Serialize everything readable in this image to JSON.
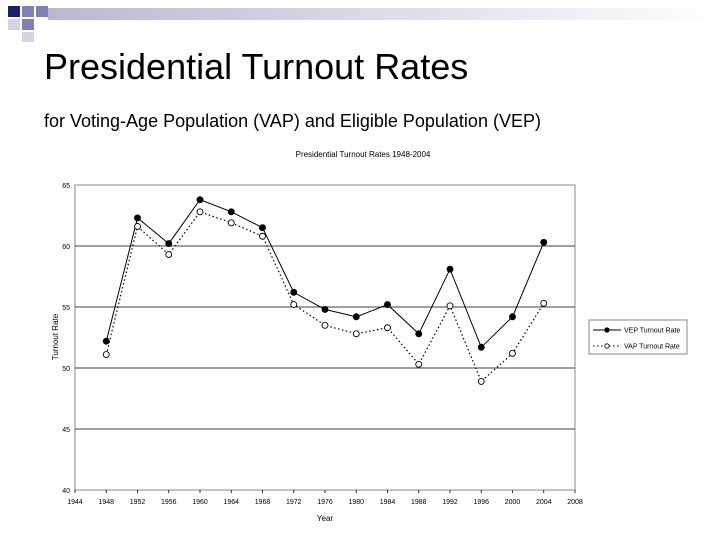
{
  "slide": {
    "title": "Presidential Turnout Rates",
    "subtitle": "for Voting-Age Population (VAP) and Eligible Population (VEP)"
  },
  "colors": {
    "deco_dark": "#1c1c7a",
    "deco_mid": "#8080b8",
    "deco_light": "#d4d4e6",
    "plot_border": "#888888",
    "line": "#000000"
  },
  "chart_data": {
    "type": "line",
    "title": "Presidential Turnout Rates 1948-2004",
    "xlabel": "Year",
    "ylabel": "Turnout Rate",
    "xlim": [
      1944,
      2008
    ],
    "ylim": [
      40,
      65
    ],
    "x_ticks": [
      1944,
      1948,
      1952,
      1956,
      1960,
      1964,
      1968,
      1972,
      1976,
      1980,
      1984,
      1988,
      1992,
      1996,
      2000,
      2004,
      2008
    ],
    "y_ticks": [
      40,
      45,
      50,
      55,
      60,
      65
    ],
    "grid": "horizontal",
    "legend_position": "right",
    "x": [
      1948,
      1952,
      1956,
      1960,
      1964,
      1968,
      1972,
      1976,
      1980,
      1984,
      1988,
      1992,
      1996,
      2000,
      2004
    ],
    "series": [
      {
        "name": "VEP Turnout Rate",
        "style": "solid",
        "marker": "filled",
        "values": [
          52.2,
          62.3,
          60.2,
          63.8,
          62.8,
          61.5,
          56.2,
          54.8,
          54.2,
          55.2,
          52.8,
          58.1,
          51.7,
          54.2,
          60.3
        ]
      },
      {
        "name": "VAP Turnout Rate",
        "style": "dotted",
        "marker": "hollow",
        "values": [
          51.1,
          61.6,
          59.3,
          62.8,
          61.9,
          60.8,
          55.2,
          53.5,
          52.8,
          53.3,
          50.3,
          55.1,
          48.9,
          51.2,
          55.3
        ]
      }
    ]
  }
}
